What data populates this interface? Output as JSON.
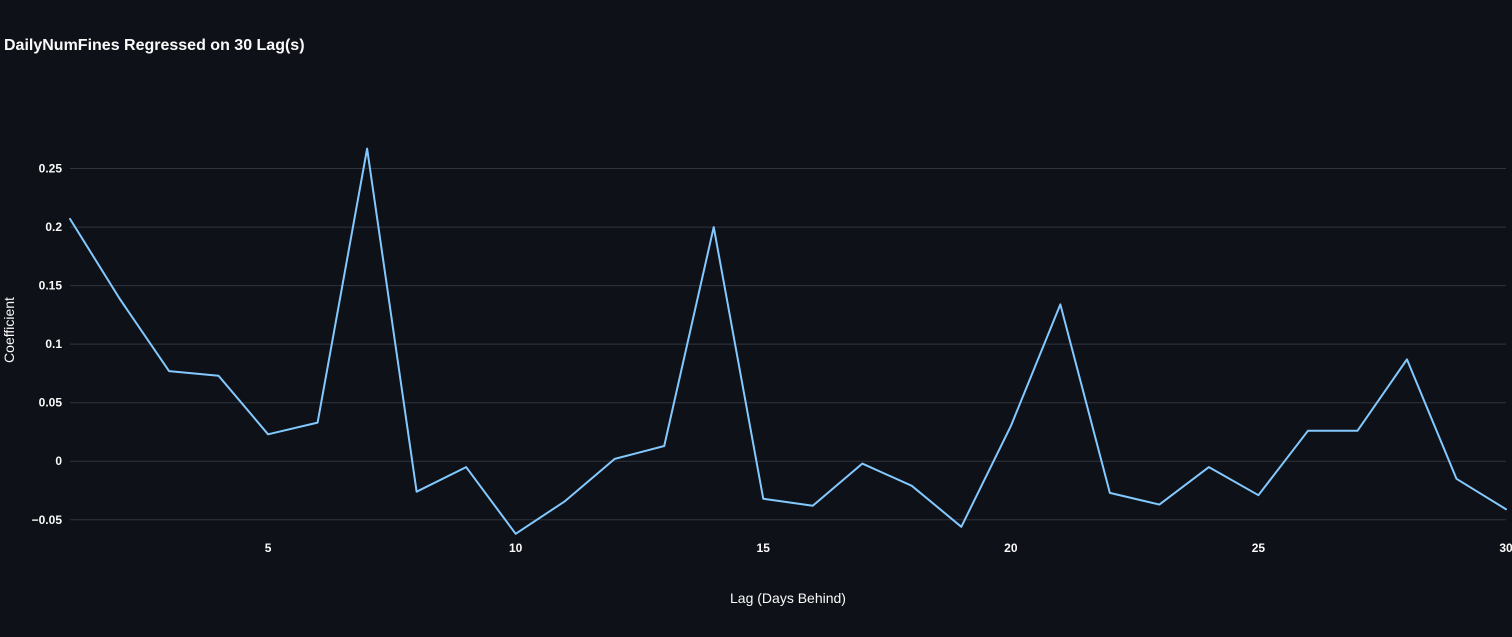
{
  "chart_data": {
    "type": "line",
    "title": "DailyNumFines Regressed on 30 Lag(s)",
    "xlabel": "Lag (Days Behind)",
    "ylabel": "Coefficient",
    "xlim": [
      1,
      30
    ],
    "ylim": [
      -0.063,
      0.3
    ],
    "x_ticks": [
      5,
      10,
      15,
      20,
      25,
      30
    ],
    "y_ticks": [
      -0.05,
      0,
      0.05,
      0.1,
      0.15,
      0.2,
      0.25
    ],
    "x_tick_labels": [
      "5",
      "10",
      "15",
      "20",
      "25",
      "30"
    ],
    "y_tick_labels": [
      "−0.05",
      "0",
      "0.05",
      "0.1",
      "0.15",
      "0.2",
      "0.25"
    ],
    "grid": true,
    "series": [
      {
        "color": "#83c9ff",
        "x": [
          1,
          2,
          3,
          4,
          5,
          6,
          7,
          8,
          9,
          10,
          11,
          12,
          13,
          14,
          15,
          16,
          17,
          18,
          19,
          20,
          21,
          22,
          23,
          24,
          25,
          26,
          27,
          28,
          29,
          30
        ],
        "values": [
          0.207,
          0.139,
          0.077,
          0.073,
          0.023,
          0.033,
          0.267,
          -0.026,
          -0.005,
          -0.062,
          -0.034,
          0.002,
          0.013,
          0.2,
          -0.032,
          -0.038,
          -0.002,
          -0.021,
          -0.056,
          0.03,
          0.134,
          -0.027,
          -0.037,
          -0.005,
          -0.029,
          0.026,
          0.026,
          0.087,
          -0.015,
          -0.041
        ]
      }
    ],
    "colors": {
      "background": "#0e1117",
      "grid": "#31333f",
      "text": "#fafafa",
      "line": "#83c9ff"
    }
  }
}
